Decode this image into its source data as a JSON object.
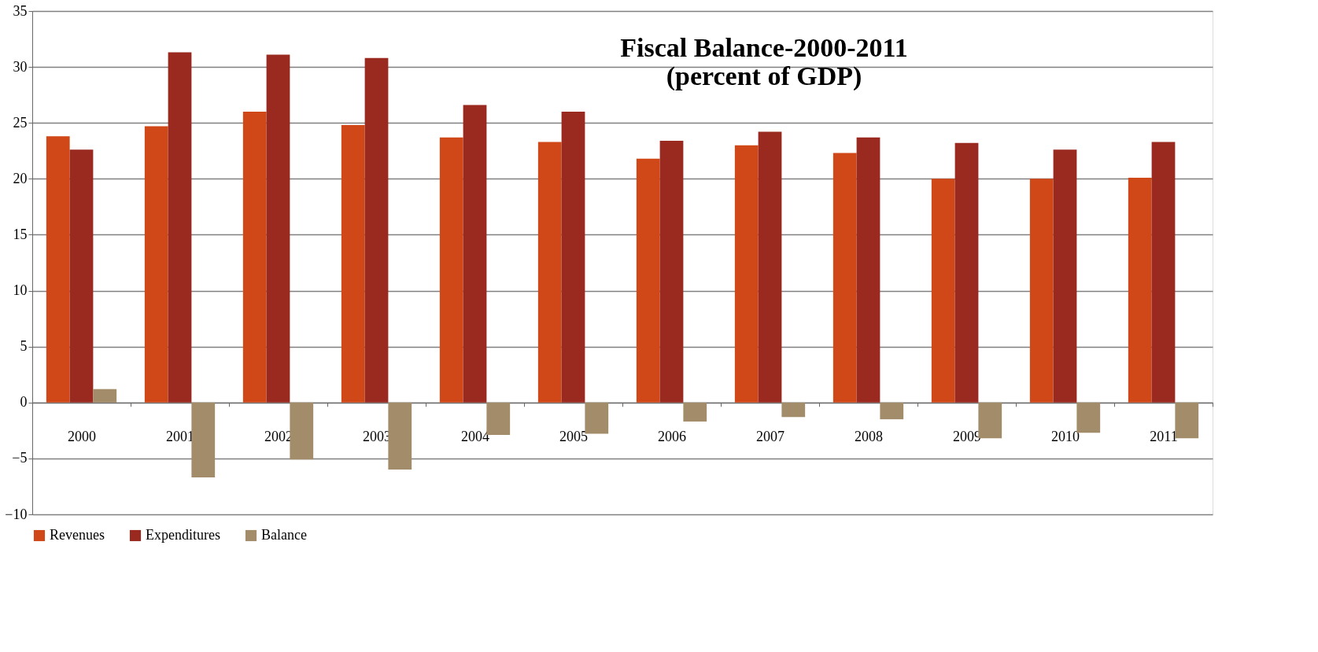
{
  "chart_data": {
    "type": "bar",
    "title": [
      "Fiscal Balance-2000-2011",
      "(percent of GDP)"
    ],
    "categories": [
      "2000",
      "2001",
      "2002",
      "2003",
      "2004",
      "2005",
      "2006",
      "2007",
      "2008",
      "2009",
      "2010",
      "2011"
    ],
    "series": [
      {
        "name": "Revenues",
        "color": "#d04818",
        "values": [
          23.8,
          24.7,
          26.0,
          24.8,
          23.7,
          23.3,
          21.8,
          23.0,
          22.3,
          20.0,
          20.0,
          20.1
        ]
      },
      {
        "name": "Expenditures",
        "color": "#9a2a20",
        "values": [
          22.6,
          31.3,
          31.1,
          30.8,
          26.6,
          26.0,
          23.4,
          24.2,
          23.7,
          23.2,
          22.6,
          23.3
        ]
      },
      {
        "name": "Balance",
        "color": "#a38c6a",
        "values": [
          1.2,
          -6.7,
          -5.1,
          -6.0,
          -2.9,
          -2.8,
          -1.7,
          -1.3,
          -1.5,
          -3.2,
          -2.7,
          -3.2
        ]
      }
    ],
    "ylim": [
      -10,
      35
    ],
    "yticks": [
      -10,
      -5,
      0,
      5,
      10,
      15,
      20,
      25,
      30,
      35
    ],
    "grid": "y",
    "legend": "bottom"
  }
}
